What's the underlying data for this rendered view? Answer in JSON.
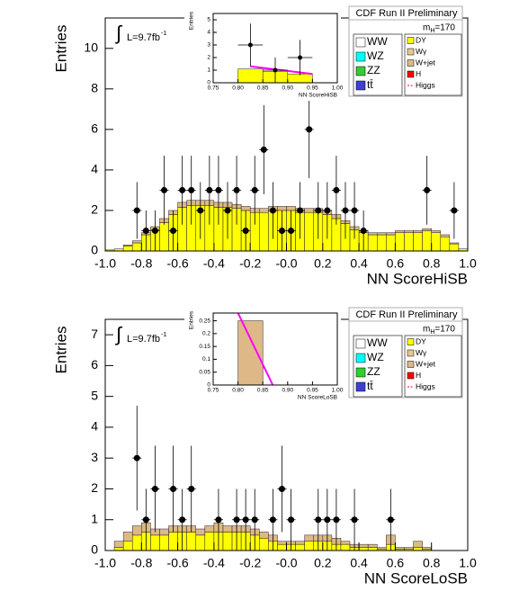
{
  "chart_data": [
    {
      "type": "histogram",
      "title": "CDF Run II Preliminary",
      "x_label": "NN ScoreHiSB",
      "y_label": "Entries",
      "luminosity": {
        "symbol": "∫",
        "text": "L=9.7fb",
        "superscript": "-1"
      },
      "mass": {
        "symbol": "m",
        "subscript": "H",
        "text": "=170"
      },
      "legend": [
        {
          "name": "WW",
          "color": "#ffffff"
        },
        {
          "name": "WZ",
          "color": "#00ffff"
        },
        {
          "name": "ZZ",
          "color": "#33cc33"
        },
        {
          "name": "tt̄",
          "color": "#4040cc"
        },
        {
          "name": "DY",
          "color": "#ffff00"
        },
        {
          "name": "Wγ",
          "color": "#e8c890"
        },
        {
          "name": "W+jet",
          "color": "#deb887"
        },
        {
          "name": "H",
          "color": "#ff0000"
        },
        {
          "name": "Higgs",
          "color": "#ff0000",
          "line": true
        }
      ],
      "bins": [
        -1,
        -0.95,
        -0.9,
        -0.85,
        -0.8,
        -0.75,
        -0.7,
        -0.65,
        -0.6,
        -0.55,
        -0.5,
        -0.45,
        -0.4,
        -0.35,
        -0.3,
        -0.25,
        -0.2,
        -0.15,
        -0.1,
        -0.05,
        0,
        0.05,
        0.1,
        0.15,
        0.2,
        0.25,
        0.3,
        0.35,
        0.4,
        0.45,
        0.5,
        0.55,
        0.6,
        0.65,
        0.7,
        0.75,
        0.8,
        0.85,
        0.9,
        0.95,
        1
      ],
      "series": [
        {
          "name": "DY",
          "color": "#ffff00",
          "values": [
            0.05,
            0.1,
            0.25,
            0.4,
            0.8,
            1.05,
            1.4,
            1.8,
            2.15,
            2.25,
            2.25,
            2.25,
            2.15,
            2.15,
            2.1,
            2.0,
            1.9,
            1.9,
            2.0,
            2.0,
            2.0,
            1.9,
            1.9,
            1.9,
            1.8,
            1.6,
            1.35,
            1.05,
            0.9,
            0.8,
            0.8,
            0.8,
            0.9,
            0.9,
            0.9,
            1.0,
            0.9,
            0.7,
            0.35,
            0.1
          ]
        },
        {
          "name": "W+jet",
          "color": "#deb887",
          "values": [
            0,
            0,
            0.05,
            0.1,
            0.1,
            0.15,
            0.2,
            0.2,
            0.25,
            0.25,
            0.25,
            0.25,
            0.25,
            0.25,
            0.2,
            0.2,
            0.2,
            0.2,
            0.2,
            0.2,
            0.2,
            0.2,
            0.2,
            0.2,
            0.2,
            0.2,
            0.15,
            0.15,
            0.1,
            0.1,
            0.1,
            0.1,
            0.1,
            0.1,
            0.1,
            0.1,
            0.1,
            0.1,
            0.05,
            0
          ]
        }
      ],
      "points": {
        "x": [
          -0.825,
          -0.775,
          -0.725,
          -0.675,
          -0.625,
          -0.575,
          -0.525,
          -0.475,
          -0.425,
          -0.375,
          -0.325,
          -0.275,
          -0.225,
          -0.175,
          -0.125,
          -0.075,
          -0.025,
          0.025,
          0.075,
          0.125,
          0.175,
          0.225,
          0.275,
          0.325,
          0.375,
          0.425,
          0.775,
          0.925
        ],
        "values": [
          2,
          1,
          1,
          3,
          1,
          3,
          3,
          2,
          3,
          3,
          2,
          3,
          1,
          3,
          5,
          2,
          1,
          1,
          2,
          6,
          2,
          2,
          3,
          2,
          2,
          1,
          3,
          2
        ],
        "errors": [
          1.4,
          1,
          1,
          1.7,
          1,
          1.7,
          1.7,
          1.4,
          1.7,
          1.7,
          1.4,
          1.7,
          1,
          1.7,
          2.2,
          1.4,
          1,
          1,
          1.4,
          2.4,
          1.4,
          1.4,
          1.7,
          1.4,
          1.4,
          1,
          1.7,
          1.4
        ]
      },
      "xlim": [
        -1,
        1
      ],
      "xticks": [
        {
          "value": -1,
          "label": "-1.0"
        },
        -0.8,
        -0.6,
        -0.4,
        -0.2,
        {
          "value": 0,
          "label": "-0.0"
        },
        0.2,
        0.4,
        0.6,
        0.8,
        {
          "value": 1,
          "label": "1.0"
        }
      ],
      "ylim": [
        0,
        11.5
      ],
      "yticks": [
        0,
        2,
        4,
        6,
        8,
        10
      ],
      "inset": {
        "type": "histogram",
        "x_label": "NN ScoreHiSB",
        "y_label": "Entries",
        "bins": [
          0.75,
          0.8,
          0.85,
          0.9,
          0.95,
          1
        ],
        "series": [
          {
            "name": "DY",
            "color": "#ffff00",
            "values": [
              0,
              1.1,
              0.9,
              0.7,
              0
            ]
          }
        ],
        "points": {
          "x": [
            0.825,
            0.875,
            0.925
          ],
          "values": [
            3,
            1,
            2
          ],
          "errors": [
            1.7,
            1,
            1.4
          ]
        },
        "signal": {
          "color": "#ff00ff",
          "x": [
            0.825,
            0.95
          ],
          "values": [
            1.3,
            0.7
          ]
        },
        "xlim": [
          0.75,
          1
        ],
        "xticks": [
          0.75,
          {
            "value": 0.8,
            "label": "0.80"
          },
          0.85,
          {
            "value": 0.9,
            "label": "0.90"
          },
          0.95,
          {
            "value": 1,
            "label": "1.00"
          }
        ],
        "ylim": [
          0,
          5.5
        ],
        "yticks": [
          0,
          1,
          2,
          3,
          4,
          5
        ]
      }
    },
    {
      "type": "histogram",
      "title": "CDF Run II Preliminary",
      "x_label": "NN ScoreLoSB",
      "y_label": "Entries",
      "luminosity": {
        "symbol": "∫",
        "text": "L=9.7fb",
        "superscript": "-1"
      },
      "mass": {
        "symbol": "m",
        "subscript": "H",
        "text": "=170"
      },
      "legend": [
        {
          "name": "WW",
          "color": "#ffffff"
        },
        {
          "name": "WZ",
          "color": "#00ffff"
        },
        {
          "name": "ZZ",
          "color": "#33cc33"
        },
        {
          "name": "tt̄",
          "color": "#4040cc"
        },
        {
          "name": "DY",
          "color": "#ffff00"
        },
        {
          "name": "Wγ",
          "color": "#e8c890"
        },
        {
          "name": "W+jet",
          "color": "#deb887"
        },
        {
          "name": "H",
          "color": "#ff0000"
        },
        {
          "name": "Higgs",
          "color": "#ff0000",
          "line": true
        }
      ],
      "bins": [
        -1,
        -0.95,
        -0.9,
        -0.85,
        -0.8,
        -0.75,
        -0.7,
        -0.65,
        -0.6,
        -0.55,
        -0.5,
        -0.45,
        -0.4,
        -0.35,
        -0.3,
        -0.25,
        -0.2,
        -0.15,
        -0.1,
        -0.05,
        0,
        0.05,
        0.1,
        0.15,
        0.2,
        0.25,
        0.3,
        0.35,
        0.4,
        0.45,
        0.5,
        0.55,
        0.6,
        0.65,
        0.7,
        0.75,
        0.8,
        0.85,
        0.9,
        0.95,
        1
      ],
      "series": [
        {
          "name": "DY",
          "color": "#ffff00",
          "values": [
            0,
            0.1,
            0.3,
            0.5,
            0.6,
            0.5,
            0.5,
            0.6,
            0.6,
            0.6,
            0.5,
            0.6,
            0.6,
            0.6,
            0.6,
            0.6,
            0.5,
            0.4,
            0.3,
            0.2,
            0.2,
            0.2,
            0.3,
            0.3,
            0.3,
            0.2,
            0.2,
            0.1,
            0.1,
            0.1,
            0.05,
            0.2,
            0.05,
            0.05,
            0.1,
            0.05,
            0,
            0,
            0,
            0
          ]
        },
        {
          "name": "W+jet",
          "color": "#deb887",
          "values": [
            0,
            0.2,
            0.3,
            0.3,
            0.3,
            0.2,
            0.2,
            0.2,
            0.2,
            0.2,
            0.2,
            0.2,
            0.3,
            0.2,
            0.2,
            0.2,
            0.2,
            0.2,
            0.2,
            0.1,
            0.1,
            0.1,
            0.2,
            0.2,
            0.2,
            0.2,
            0.1,
            0.1,
            0.1,
            0.1,
            0.05,
            0.3,
            0.05,
            0.05,
            0.2,
            0.05,
            0,
            0,
            0,
            0
          ]
        }
      ],
      "points": {
        "x": [
          -0.825,
          -0.775,
          -0.725,
          -0.625,
          -0.575,
          -0.525,
          -0.375,
          -0.275,
          -0.225,
          -0.175,
          -0.075,
          -0.025,
          0.025,
          0.175,
          0.225,
          0.275,
          0.375,
          0.575
        ],
        "values": [
          3,
          1,
          2,
          2,
          1,
          2,
          1,
          1,
          1,
          1,
          1,
          2,
          1,
          1,
          1,
          1,
          1,
          1
        ],
        "errors": [
          1.7,
          1,
          1.4,
          1.4,
          1,
          1.4,
          1,
          1,
          1,
          1,
          1,
          1.4,
          1,
          1,
          1,
          1,
          1,
          1
        ]
      },
      "xlim": [
        -1,
        1
      ],
      "xticks": [
        {
          "value": -1,
          "label": "-1.0"
        },
        -0.8,
        -0.6,
        -0.4,
        -0.2,
        {
          "value": 0,
          "label": "-0.0"
        },
        0.2,
        0.4,
        0.6,
        0.8,
        {
          "value": 1,
          "label": "1.0"
        }
      ],
      "ylim": [
        0,
        7.5
      ],
      "yticks": [
        0,
        1,
        2,
        3,
        4,
        5,
        6,
        7
      ],
      "inset": {
        "type": "histogram",
        "x_label": "NN ScoreLoSB",
        "y_label": "Entries",
        "bins": [
          0.75,
          0.8,
          0.85,
          0.9,
          0.95,
          1
        ],
        "series": [
          {
            "name": "W+jet",
            "color": "#deb887",
            "values": [
              0,
              0.25,
              0,
              0,
              0
            ]
          }
        ],
        "signal": {
          "color": "#ff00ff",
          "x": [
            0.8,
            0.87
          ],
          "values": [
            0.28,
            0
          ]
        },
        "xlim": [
          0.75,
          1
        ],
        "xticks": [
          0.75,
          {
            "value": 0.8,
            "label": "0.80"
          },
          0.85,
          {
            "value": 0.9,
            "label": "0.90"
          },
          0.95,
          {
            "value": 1,
            "label": "1.00"
          }
        ],
        "ylim": [
          0,
          0.28
        ],
        "yticks": [
          0,
          0.05,
          0.1,
          0.15,
          0.2,
          0.25
        ]
      }
    }
  ]
}
